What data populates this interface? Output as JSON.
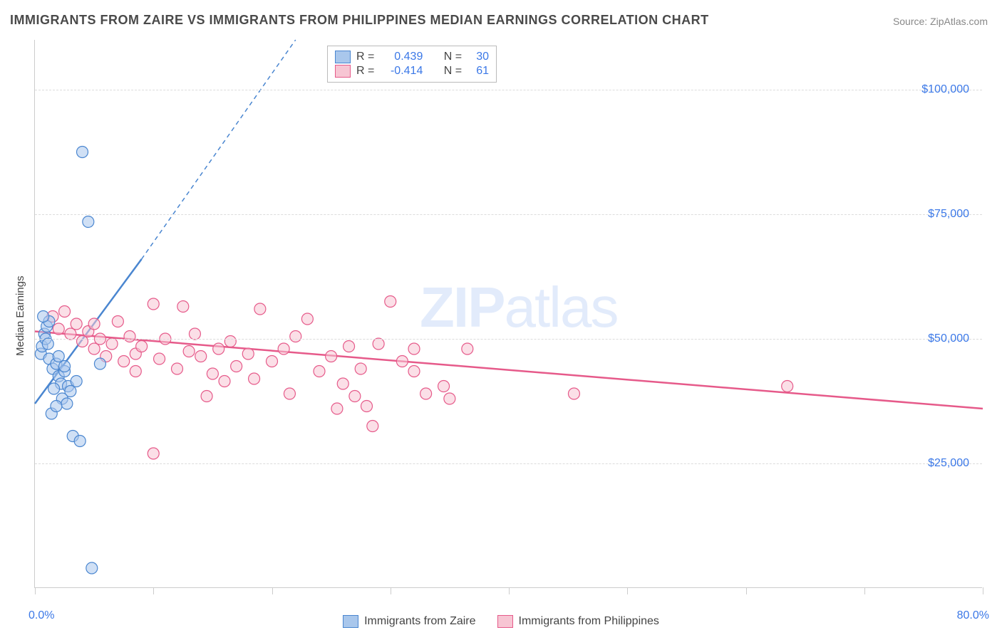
{
  "title": "IMMIGRANTS FROM ZAIRE VS IMMIGRANTS FROM PHILIPPINES MEDIAN EARNINGS CORRELATION CHART",
  "source": "Source: ZipAtlas.com",
  "ylabel": "Median Earnings",
  "watermark_bold": "ZIP",
  "watermark_rest": "atlas",
  "colors": {
    "blue_fill": "#a9c7ec",
    "blue_stroke": "#4a86d0",
    "pink_fill": "#f7c5d3",
    "pink_stroke": "#e65a8a",
    "axis_text": "#3b78e7",
    "grid": "#dcdcdc"
  },
  "axes": {
    "xmin": 0,
    "xmax": 80,
    "ymin": 0,
    "ymax": 110000,
    "yticks": [
      25000,
      50000,
      75000,
      100000
    ],
    "ytick_labels": [
      "$25,000",
      "$50,000",
      "$75,000",
      "$100,000"
    ],
    "xtick_positions": [
      0,
      10,
      20,
      30,
      40,
      50,
      60,
      70,
      80
    ],
    "xmin_label": "0.0%",
    "xmax_label": "80.0%"
  },
  "legend_top": {
    "rows": [
      {
        "swatch": "blue",
        "r_label": "R =",
        "r_value": "0.439",
        "n_label": "N =",
        "n_value": "30"
      },
      {
        "swatch": "pink",
        "r_label": "R =",
        "r_value": "-0.414",
        "n_label": "N =",
        "n_value": "61"
      }
    ]
  },
  "legend_bottom": {
    "items": [
      {
        "swatch": "blue",
        "label": "Immigrants from Zaire"
      },
      {
        "swatch": "pink",
        "label": "Immigrants from Philippines"
      }
    ]
  },
  "series": {
    "zaire": {
      "points": [
        [
          0.5,
          47000
        ],
        [
          0.6,
          48500
        ],
        [
          0.8,
          51000
        ],
        [
          0.9,
          50000
        ],
        [
          1.0,
          52500
        ],
        [
          1.1,
          49000
        ],
        [
          1.2,
          46000
        ],
        [
          1.5,
          44000
        ],
        [
          1.8,
          45000
        ],
        [
          2.0,
          42500
        ],
        [
          2.2,
          41000
        ],
        [
          2.5,
          43500
        ],
        [
          2.8,
          40500
        ],
        [
          3.0,
          39500
        ],
        [
          1.6,
          40000
        ],
        [
          2.3,
          38000
        ],
        [
          2.7,
          37000
        ],
        [
          1.4,
          35000
        ],
        [
          3.5,
          41500
        ],
        [
          1.2,
          53500
        ],
        [
          0.7,
          54500
        ],
        [
          2.0,
          46500
        ],
        [
          2.5,
          44500
        ],
        [
          1.8,
          36500
        ],
        [
          3.2,
          30500
        ],
        [
          3.8,
          29500
        ],
        [
          4.5,
          73500
        ],
        [
          4.0,
          87500
        ],
        [
          4.8,
          4000
        ],
        [
          5.5,
          45000
        ]
      ],
      "trend": {
        "x1": 0,
        "y1": 37000,
        "x2": 9,
        "y2": 66000
      },
      "trend_extend": {
        "x1": 9,
        "y1": 66000,
        "x2": 22,
        "y2": 110000
      }
    },
    "philippines": {
      "points": [
        [
          1.5,
          54500
        ],
        [
          2.0,
          52000
        ],
        [
          2.5,
          55500
        ],
        [
          3.0,
          51000
        ],
        [
          3.5,
          53000
        ],
        [
          4.0,
          49500
        ],
        [
          4.5,
          51500
        ],
        [
          5.0,
          48000
        ],
        [
          5.5,
          50000
        ],
        [
          6.0,
          46500
        ],
        [
          6.5,
          49000
        ],
        [
          7.0,
          53500
        ],
        [
          7.5,
          45500
        ],
        [
          8.0,
          50500
        ],
        [
          8.5,
          47000
        ],
        [
          9.0,
          48500
        ],
        [
          10.0,
          57000
        ],
        [
          10.5,
          46000
        ],
        [
          11.0,
          50000
        ],
        [
          12.0,
          44000
        ],
        [
          12.5,
          56500
        ],
        [
          13.0,
          47500
        ],
        [
          13.5,
          51000
        ],
        [
          14.0,
          46500
        ],
        [
          15.0,
          43000
        ],
        [
          15.5,
          48000
        ],
        [
          16.0,
          41500
        ],
        [
          16.5,
          49500
        ],
        [
          17.0,
          44500
        ],
        [
          18.0,
          47000
        ],
        [
          18.5,
          42000
        ],
        [
          19.0,
          56000
        ],
        [
          20.0,
          45500
        ],
        [
          21.0,
          48000
        ],
        [
          21.5,
          39000
        ],
        [
          22.0,
          50500
        ],
        [
          23.0,
          54000
        ],
        [
          24.0,
          43500
        ],
        [
          25.0,
          46500
        ],
        [
          26.0,
          41000
        ],
        [
          26.5,
          48500
        ],
        [
          27.0,
          38500
        ],
        [
          27.5,
          44000
        ],
        [
          28.0,
          36500
        ],
        [
          29.0,
          49000
        ],
        [
          30.0,
          57500
        ],
        [
          31.0,
          45500
        ],
        [
          32.0,
          48000
        ],
        [
          33.0,
          39000
        ],
        [
          34.5,
          40500
        ],
        [
          35.0,
          38000
        ],
        [
          14.5,
          38500
        ],
        [
          10.0,
          27000
        ],
        [
          25.5,
          36000
        ],
        [
          28.5,
          32500
        ],
        [
          32.0,
          43500
        ],
        [
          36.5,
          48000
        ],
        [
          45.5,
          39000
        ],
        [
          63.5,
          40500
        ],
        [
          5.0,
          53000
        ],
        [
          8.5,
          43500
        ]
      ],
      "trend": {
        "x1": 0,
        "y1": 51500,
        "x2": 80,
        "y2": 36000
      }
    }
  },
  "marker_radius": 8,
  "marker_opacity": 0.55,
  "line_width": 2.5
}
